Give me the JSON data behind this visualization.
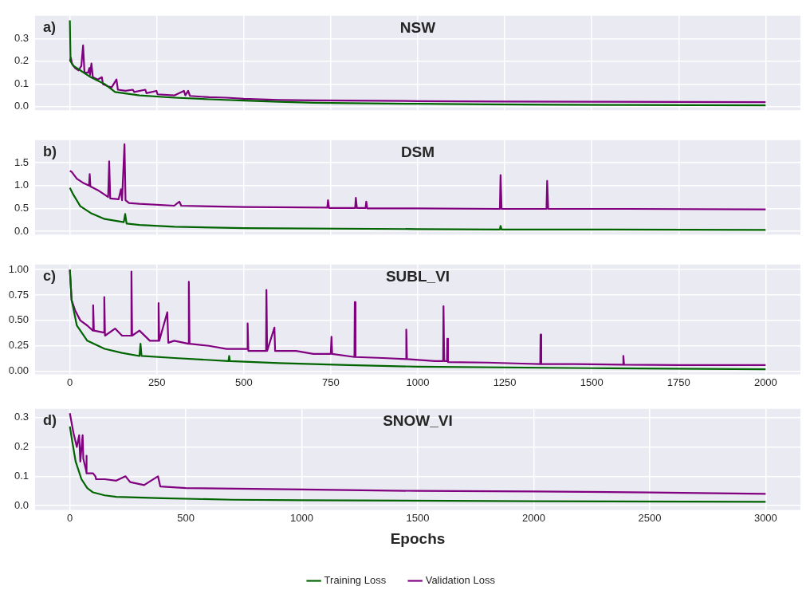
{
  "chart_data": [
    {
      "type": "line",
      "title": "NSW",
      "annotations": [
        "a)"
      ],
      "xlim": [
        -100,
        2100
      ],
      "xticks": [
        0,
        250,
        500,
        750,
        1000,
        1250,
        1500,
        1750,
        2000
      ],
      "ylim": [
        -0.015,
        0.4
      ],
      "yticks": [
        {
          "value": 0,
          "label": "0.0"
        },
        0.1,
        0.2,
        0.3
      ],
      "grid": true,
      "tick_labels": "y",
      "legend": false,
      "series": [
        {
          "color": "#006400",
          "x": [
            0,
            2,
            10,
            30,
            60,
            100,
            130,
            200,
            300,
            400,
            500,
            600,
            700,
            800,
            1000,
            1200,
            1400,
            1600,
            1800,
            2000
          ],
          "values": [
            0.38,
            0.2,
            0.18,
            0.16,
            0.13,
            0.1,
            0.065,
            0.05,
            0.04,
            0.033,
            0.027,
            0.022,
            0.018,
            0.016,
            0.013,
            0.011,
            0.009,
            0.008,
            0.007,
            0.006
          ]
        },
        {
          "color": "#800080",
          "x": [
            0,
            3,
            6,
            15,
            25,
            33,
            38,
            42,
            52,
            56,
            58,
            62,
            66,
            80,
            92,
            95,
            110,
            120,
            134,
            138,
            160,
            181,
            185,
            217,
            220,
            249,
            252,
            300,
            328,
            332,
            340,
            345,
            400,
            450,
            500,
            600,
            700,
            800,
            1000,
            1250,
            1500,
            1750,
            2000
          ],
          "values": [
            0.2,
            0.215,
            0.19,
            0.17,
            0.16,
            0.18,
            0.27,
            0.15,
            0.15,
            0.17,
            0.14,
            0.19,
            0.13,
            0.12,
            0.13,
            0.1,
            0.09,
            0.085,
            0.12,
            0.075,
            0.07,
            0.075,
            0.065,
            0.075,
            0.06,
            0.07,
            0.055,
            0.05,
            0.07,
            0.05,
            0.07,
            0.048,
            0.042,
            0.04,
            0.035,
            0.03,
            0.028,
            0.027,
            0.025,
            0.023,
            0.022,
            0.021,
            0.02
          ]
        }
      ]
    },
    {
      "type": "line",
      "title": "DSM",
      "annotations": [
        "b)"
      ],
      "xlim": [
        -100,
        2100
      ],
      "xticks": [
        0,
        250,
        500,
        750,
        1000,
        1250,
        1500,
        1750,
        2000
      ],
      "ylim": [
        -0.07,
        1.99
      ],
      "yticks": [
        {
          "value": 0,
          "label": "0.0"
        },
        0.5,
        {
          "value": 1,
          "label": "1.0"
        },
        1.5
      ],
      "grid": true,
      "tick_labels": "y",
      "legend": false,
      "series": [
        {
          "color": "#006400",
          "x": [
            0,
            10,
            30,
            60,
            100,
            155,
            159,
            163,
            200,
            300,
            500,
            1000,
            1236,
            1238,
            1241,
            1500,
            2000
          ],
          "values": [
            0.95,
            0.8,
            0.55,
            0.4,
            0.27,
            0.2,
            0.38,
            0.17,
            0.14,
            0.1,
            0.07,
            0.05,
            0.04,
            0.12,
            0.04,
            0.04,
            0.03
          ]
        },
        {
          "color": "#800080",
          "x": [
            0,
            5,
            20,
            40,
            55,
            57,
            59,
            80,
            100,
            110,
            113,
            116,
            140,
            147,
            150,
            157,
            160,
            170,
            200,
            300,
            315,
            320,
            500,
            740,
            742,
            745,
            820,
            822,
            825,
            850,
            852,
            855,
            1000,
            1236,
            1238,
            1241,
            1370,
            1372,
            1375,
            1600,
            2000
          ],
          "values": [
            1.32,
            1.3,
            1.15,
            1.05,
            1.0,
            1.25,
            0.98,
            0.9,
            0.8,
            0.75,
            1.53,
            0.72,
            0.7,
            0.92,
            0.68,
            1.9,
            0.68,
            0.62,
            0.6,
            0.56,
            0.65,
            0.56,
            0.53,
            0.52,
            0.68,
            0.51,
            0.51,
            0.73,
            0.51,
            0.51,
            0.65,
            0.5,
            0.5,
            0.49,
            1.23,
            0.49,
            0.49,
            1.1,
            0.49,
            0.49,
            0.48
          ]
        }
      ]
    },
    {
      "type": "line",
      "title": "SUBL_VI",
      "annotations": [
        "c)"
      ],
      "xlim": [
        -100,
        2100
      ],
      "xticks": [
        0,
        250,
        500,
        750,
        1000,
        1250,
        1500,
        1750,
        2000
      ],
      "ylim": [
        -0.03,
        1.05
      ],
      "yticks": [
        {
          "value": 0,
          "label": "0.00"
        },
        0.25,
        {
          "value": 0.5,
          "label": "0.50"
        },
        0.75,
        {
          "value": 1,
          "label": "1.00"
        }
      ],
      "grid": true,
      "legend": false,
      "series": [
        {
          "color": "#006400",
          "x": [
            0,
            5,
            20,
            50,
            100,
            150,
            200,
            203,
            206,
            300,
            456,
            458,
            460,
            600,
            800,
            1000,
            1500,
            2000
          ],
          "values": [
            1.0,
            0.7,
            0.45,
            0.3,
            0.22,
            0.18,
            0.15,
            0.27,
            0.15,
            0.13,
            0.1,
            0.15,
            0.1,
            0.08,
            0.06,
            0.045,
            0.03,
            0.02
          ]
        },
        {
          "color": "#800080",
          "x": [
            0,
            5,
            15,
            30,
            50,
            66,
            67,
            69,
            98,
            99,
            101,
            130,
            150,
            176,
            177,
            179,
            200,
            230,
            254,
            255,
            257,
            280,
            283,
            300,
            341,
            342,
            344,
            400,
            450,
            510,
            511,
            513,
            564,
            565,
            567,
            588,
            590,
            650,
            700,
            750,
            752,
            754,
            818,
            819,
            821,
            900,
            966,
            967,
            969,
            1050,
            1073,
            1074,
            1076,
            1084,
            1085,
            1087,
            1200,
            1300,
            1352,
            1353,
            1355,
            1450,
            1590,
            1591,
            1593,
            1750,
            2000
          ],
          "values": [
            1.0,
            0.7,
            0.6,
            0.5,
            0.45,
            0.4,
            0.65,
            0.4,
            0.38,
            0.73,
            0.35,
            0.42,
            0.35,
            0.35,
            0.98,
            0.35,
            0.4,
            0.3,
            0.3,
            0.67,
            0.3,
            0.58,
            0.28,
            0.3,
            0.27,
            0.88,
            0.27,
            0.25,
            0.22,
            0.22,
            0.47,
            0.2,
            0.2,
            0.8,
            0.2,
            0.43,
            0.2,
            0.2,
            0.17,
            0.17,
            0.34,
            0.17,
            0.14,
            0.68,
            0.14,
            0.13,
            0.12,
            0.41,
            0.12,
            0.1,
            0.1,
            0.64,
            0.1,
            0.1,
            0.32,
            0.09,
            0.085,
            0.075,
            0.07,
            0.36,
            0.07,
            0.07,
            0.065,
            0.15,
            0.065,
            0.06,
            0.06
          ]
        }
      ]
    },
    {
      "type": "line",
      "title": "SNOW_VI",
      "annotations": [
        "d)"
      ],
      "xlabel": "Epochs",
      "xlim": [
        -150,
        3150
      ],
      "xticks": [
        0,
        500,
        1000,
        1500,
        2000,
        2500,
        3000
      ],
      "ylim": [
        -0.015,
        0.33
      ],
      "yticks": [
        {
          "value": 0,
          "label": "0.0"
        },
        0.1,
        0.2,
        0.3
      ],
      "grid": true,
      "legend": "bottom",
      "series": [
        {
          "name": "Training Loss",
          "color": "#006400",
          "x": [
            0,
            10,
            25,
            50,
            75,
            100,
            150,
            200,
            400,
            700,
            1000,
            2000,
            3000
          ],
          "values": [
            0.27,
            0.22,
            0.15,
            0.09,
            0.06,
            0.045,
            0.035,
            0.03,
            0.025,
            0.02,
            0.018,
            0.015,
            0.013
          ]
        },
        {
          "name": "Validation Loss",
          "color": "#800080",
          "x": [
            0,
            15,
            30,
            40,
            45,
            55,
            58,
            70,
            71,
            73,
            100,
            110,
            113,
            150,
            200,
            240,
            260,
            320,
            380,
            390,
            500,
            1000,
            1500,
            2000,
            2500,
            3000
          ],
          "values": [
            0.315,
            0.25,
            0.2,
            0.24,
            0.15,
            0.24,
            0.16,
            0.12,
            0.17,
            0.11,
            0.11,
            0.1,
            0.09,
            0.09,
            0.085,
            0.1,
            0.08,
            0.07,
            0.1,
            0.065,
            0.06,
            0.055,
            0.05,
            0.048,
            0.045,
            0.04
          ]
        }
      ]
    }
  ]
}
